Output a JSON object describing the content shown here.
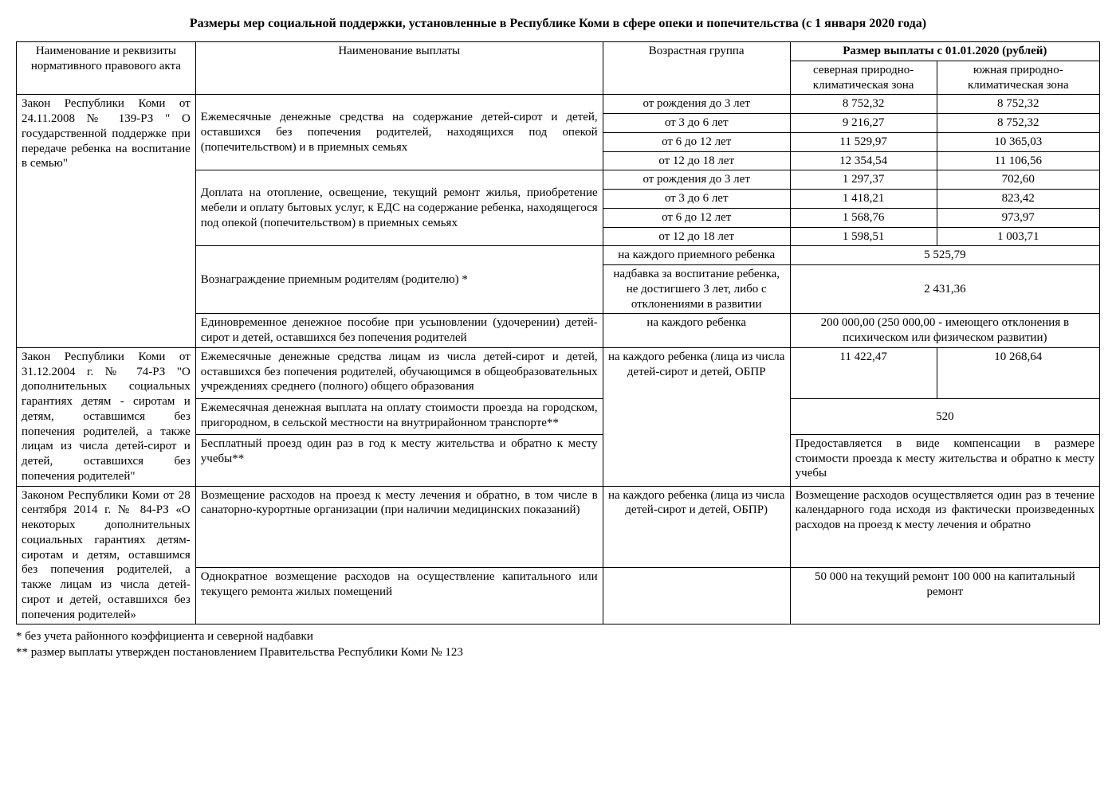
{
  "title": "Размеры мер социальной поддержки, установленные в Республике Коми в сфере опеки и попечительства (с 1 января 2020 года)",
  "headers": {
    "col1": "Наименование и реквизиты нормативного правового акта",
    "col2": "Наименование выплаты",
    "col3": "Возрастная группа",
    "col45": "Размер выплаты с 01.01.2020 (рублей)",
    "col4": "северная природно-климатическая зона",
    "col5": "южная природно-климатическая зона"
  },
  "law1": {
    "name": "Закон Республики Коми от 24.11.2008 № 139-РЗ \" О государственной поддержке при передаче ребенка на воспитание в семью\"",
    "pay1": {
      "name": "Ежемесячные денежные средства на содержание детей-сирот и детей, оставшихся без попечения родителей, находящихся под опекой (попечительством) и в приемных семьях",
      "rows": [
        {
          "age": "от рождения до 3 лет",
          "north": "8 752,32",
          "south": "8 752,32"
        },
        {
          "age": "от 3 до 6 лет",
          "north": "9 216,27",
          "south": "8 752,32"
        },
        {
          "age": "от 6 до 12 лет",
          "north": "11 529,97",
          "south": "10 365,03"
        },
        {
          "age": "от 12 до 18 лет",
          "north": "12 354,54",
          "south": "11 106,56"
        }
      ]
    },
    "pay2": {
      "name": "Доплата на отопление, освещение, текущий ремонт жилья, приобретение мебели и оплату бытовых услуг, к ЕДС на содержание ребенка, находящегося под опекой (попечительством) в приемных семьях",
      "rows": [
        {
          "age": "от рождения до 3 лет",
          "north": "1 297,37",
          "south": "702,60"
        },
        {
          "age": "от 3 до 6 лет",
          "north": "1 418,21",
          "south": "823,42"
        },
        {
          "age": "от 6 до 12 лет",
          "north": "1 568,76",
          "south": "973,97"
        },
        {
          "age": "от 12 до 18 лет",
          "north": "1 598,51",
          "south": "1 003,71"
        }
      ]
    },
    "pay3": {
      "name": "Вознаграждение приемным родителям (родителю) *",
      "row1": {
        "age": "на каждого приемного ребенка",
        "val": "5 525,79"
      },
      "row2": {
        "age": "надбавка за воспитание ребенка, не достигшего 3 лет, либо с отклонениями в развитии",
        "val": "2 431,36"
      }
    },
    "pay4": {
      "name": "Единовременное денежное пособие при усыновлении (удочерении) детей-сирот и детей, оставшихся без попечения родителей",
      "age": "на каждого ребенка",
      "val": "200 000,00 (250 000,00 - имеющего отклонения в психическом или физическом развитии)"
    }
  },
  "law2": {
    "name": "Закон Республики Коми от 31.12.2004 г. № 74-РЗ \"О дополнительных социальных гарантиях детям - сиротам и детям, оставшимся без попечения родителей, а также лицам из числа детей-сирот и детей, оставшихся без попечения родителей\"",
    "pay1": {
      "name": "Ежемесячные денежные средства лицам из числа детей-сирот и детей, оставшихся без попечения родителей, обучающимся в общеобразовательных учреждениях среднего (полного) общего образования",
      "age": "на каждого ребенка (лица из числа детей-сирот и детей, ОБПР",
      "north": "11 422,47",
      "south": "10 268,64"
    },
    "pay2": {
      "name": "Ежемесячная денежная выплата на оплату стоимости проезда на городском, пригородном, в сельской местности на внутрирайонном транспорте**",
      "val": "520"
    },
    "pay3": {
      "name": "Бесплатный проезд один раз в год к месту жительства и обратно к месту учебы**",
      "val": "Предоставляется в виде компенсации в размере стоимости проезда к месту жительства и обратно к месту учебы"
    }
  },
  "law3": {
    "name": "Законом Республики Коми от 28 сентября 2014 г. № 84-РЗ «О некоторых дополнительных социальных гарантиях детям-сиротам и детям, оставшимся без попечения родителей, а также лицам из числа детей-сирот и детей, оставшихся без попечения родителей»",
    "pay1": {
      "name": "Возмещение расходов на проезд к месту лечения и обратно, в том числе в санаторно-курортные организации (при наличии медицинских показаний)",
      "age": "на каждого ребенка (лица из числа детей-сирот и детей, ОБПР)",
      "val": "Возмещение расходов осуществляется один раз в течение календарного года исходя из фактически произведенных расходов на проезд к месту лечения и обратно"
    },
    "pay2": {
      "name": "Однократное возмещение расходов на осуществление капитального или текущего ремонта жилых помещений",
      "val": "50 000 на текущий ремонт 100 000 на капитальный ремонт"
    }
  },
  "footnotes": {
    "f1": "* без учета районного коэффициента и северной надбавки",
    "f2": "** размер выплаты утвержден постановлением Правительства Республики Коми № 123"
  }
}
